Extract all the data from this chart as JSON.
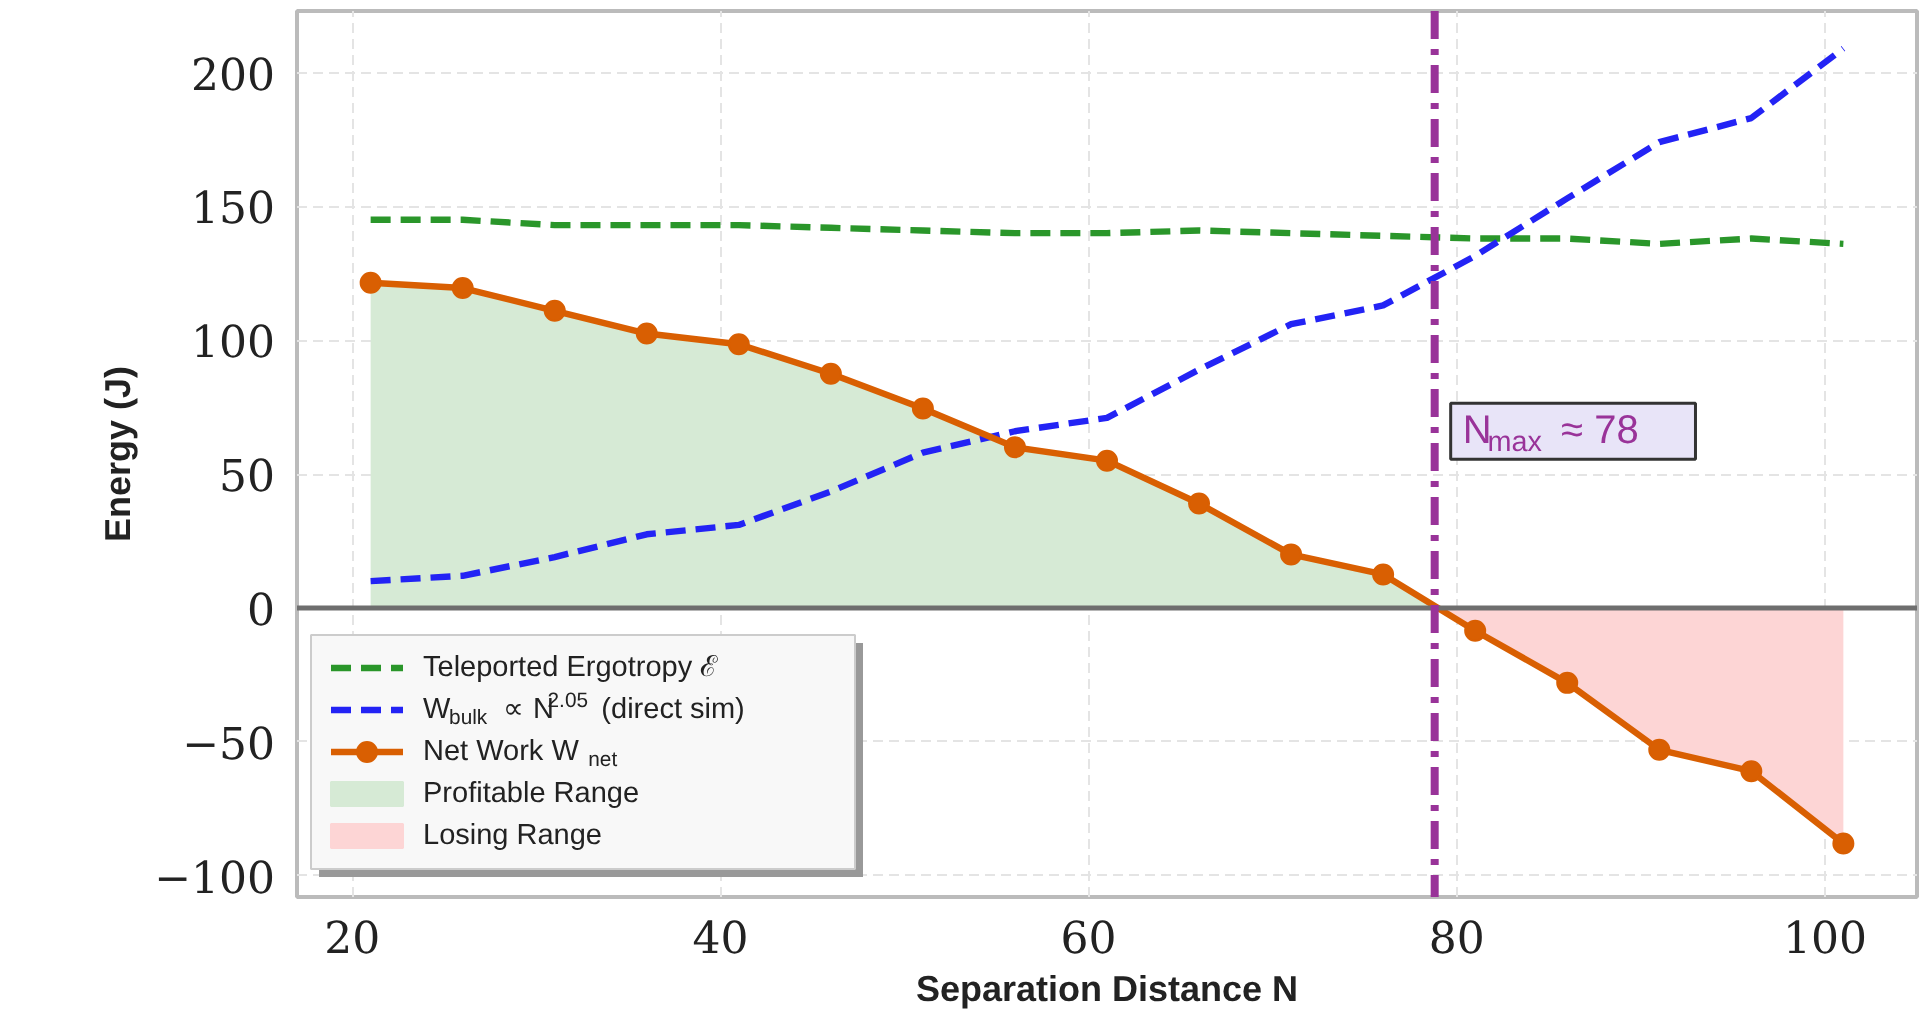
{
  "chart_data": {
    "type": "line",
    "xlabel": "Separation Distance N",
    "ylabel": "Energy (J)",
    "x": [
      21,
      26,
      31,
      36,
      41,
      46,
      51,
      56,
      61,
      66,
      71,
      76,
      81,
      86,
      91,
      96,
      101
    ],
    "xlim": [
      17,
      105
    ],
    "ylim": [
      -108,
      223
    ],
    "xticks": [
      20,
      40,
      60,
      80,
      100
    ],
    "yticks": [
      -100,
      -50,
      0,
      50,
      100,
      150,
      200
    ],
    "grid": true,
    "legend": "bottom left",
    "series": [
      {
        "name": "Teleported Ergotropy ℰ",
        "color": "#2a962a",
        "line_style": "dashed",
        "marker": "none",
        "values": [
          145,
          145,
          143,
          143,
          143,
          142,
          141,
          140,
          140,
          141,
          140,
          139,
          138,
          138,
          136,
          138,
          136
        ]
      },
      {
        "name": "W$_{bulk}$ ∝ N$^{2.05}$ (direct sim)",
        "color": "#2323f5",
        "line_style": "dashed",
        "marker": "none",
        "values": [
          10,
          12,
          19,
          27.5,
          31,
          43.5,
          58,
          66,
          71,
          89,
          106,
          113,
          131.5,
          153,
          174,
          183,
          209
        ]
      },
      {
        "name": "Net Work W$_{net}$",
        "color": "#d95f02",
        "line_style": "solid",
        "marker": "circle",
        "values": [
          121.5,
          119.5,
          111,
          102.5,
          98.5,
          87.5,
          74.5,
          60,
          55,
          39,
          20,
          12.5,
          -8.5,
          -28,
          -53,
          -61,
          -88
        ]
      },
      {
        "name": "Profitable Range",
        "type": "area",
        "color": "#d6ead5",
        "x": [
          21,
          26,
          31,
          36,
          41,
          46,
          51,
          56,
          61,
          66,
          71,
          76,
          78.8
        ],
        "values": [
          121.5,
          119.5,
          111,
          102.5,
          98.5,
          87.5,
          74.5,
          60,
          55,
          39,
          20,
          12.5,
          0
        ]
      },
      {
        "name": "Losing Range",
        "type": "area",
        "color": "#fdd5d5",
        "x": [
          78.8,
          81,
          86,
          91,
          96,
          101
        ],
        "values": [
          0,
          -8.5,
          -28,
          -53,
          -61,
          -88
        ]
      }
    ],
    "ref_lines": [
      {
        "axis": "y",
        "value": 0,
        "color": "#6e6e6e",
        "line_style": "solid"
      },
      {
        "axis": "x",
        "value": 78.8,
        "color": "#993399",
        "line_style": "dashdot",
        "label": "N$_{max}$ ≈ 78"
      }
    ]
  }
}
